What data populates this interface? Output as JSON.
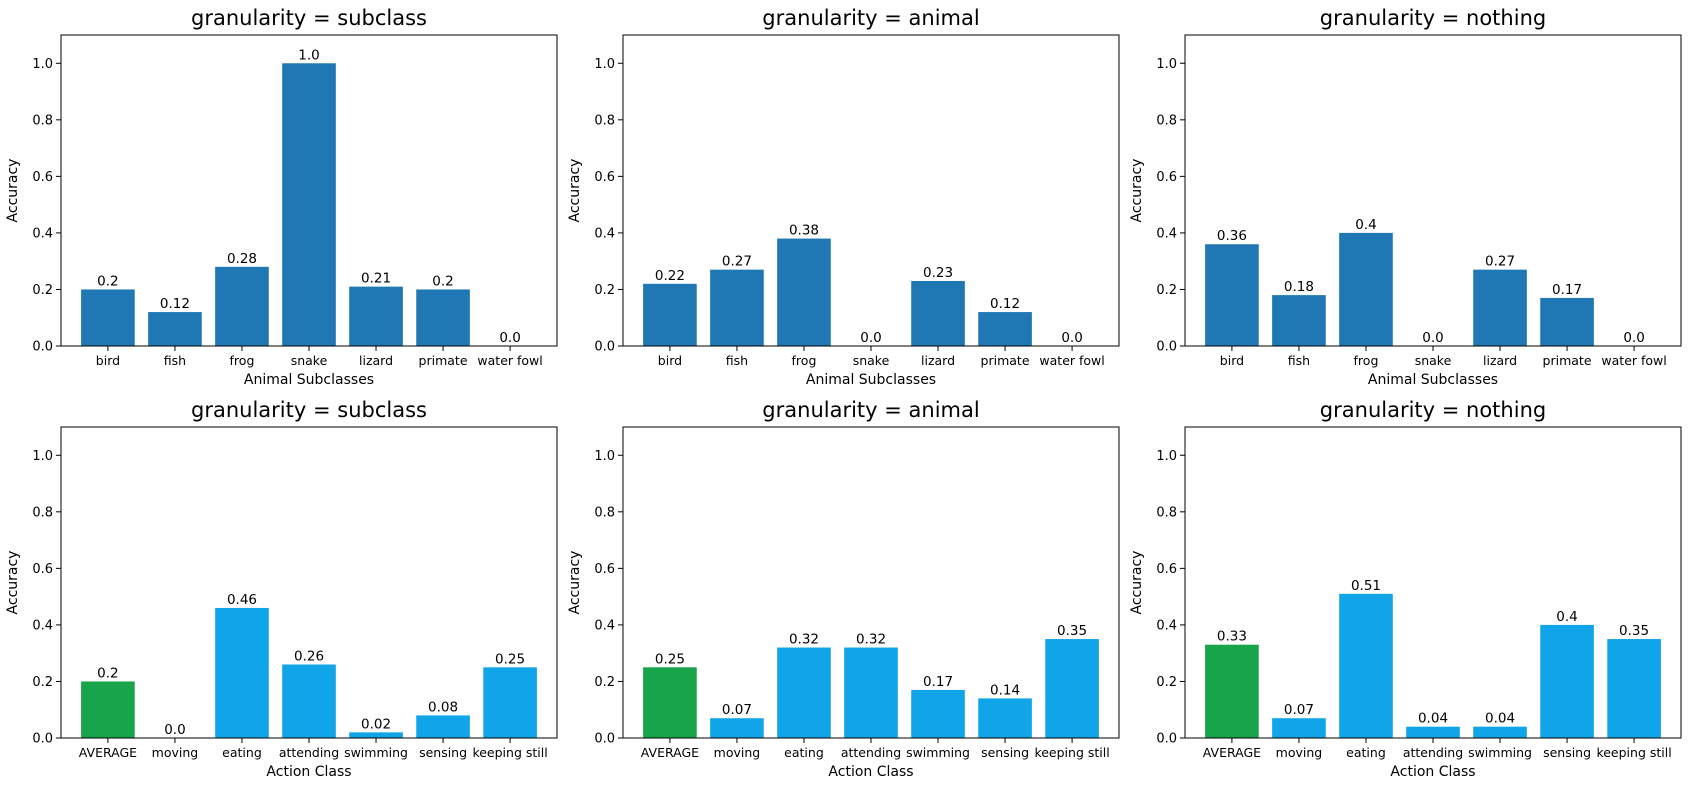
{
  "colors": {
    "animal_bar": "#1f77b4",
    "action_bar": "#10a5e8",
    "average_bar": "#18a44b"
  },
  "chart_data": [
    {
      "type": "bar",
      "title": "granularity = subclass",
      "xlabel": "Animal Subclasses",
      "ylabel": "Accuracy",
      "ylim": [
        0,
        1.1
      ],
      "yticks": [
        "0.0",
        "0.2",
        "0.4",
        "0.6",
        "0.8",
        "1.0"
      ],
      "categories": [
        "bird",
        "fish",
        "frog",
        "snake",
        "lizard",
        "primate",
        "water fowl"
      ],
      "values": [
        0.2,
        0.12,
        0.28,
        1.0,
        0.21,
        0.2,
        0.0
      ],
      "labels": [
        "0.2",
        "0.12",
        "0.28",
        "1.0",
        "0.21",
        "0.2",
        "0.0"
      ]
    },
    {
      "type": "bar",
      "title": "granularity = animal",
      "xlabel": "Animal Subclasses",
      "ylabel": "Accuracy",
      "ylim": [
        0,
        1.1
      ],
      "yticks": [
        "0.0",
        "0.2",
        "0.4",
        "0.6",
        "0.8",
        "1.0"
      ],
      "categories": [
        "bird",
        "fish",
        "frog",
        "snake",
        "lizard",
        "primate",
        "water fowl"
      ],
      "values": [
        0.22,
        0.27,
        0.38,
        0.0,
        0.23,
        0.12,
        0.0
      ],
      "labels": [
        "0.22",
        "0.27",
        "0.38",
        "0.0",
        "0.23",
        "0.12",
        "0.0"
      ]
    },
    {
      "type": "bar",
      "title": "granularity = nothing",
      "xlabel": "Animal Subclasses",
      "ylabel": "Accuracy",
      "ylim": [
        0,
        1.1
      ],
      "yticks": [
        "0.0",
        "0.2",
        "0.4",
        "0.6",
        "0.8",
        "1.0"
      ],
      "categories": [
        "bird",
        "fish",
        "frog",
        "snake",
        "lizard",
        "primate",
        "water fowl"
      ],
      "values": [
        0.36,
        0.18,
        0.4,
        0.0,
        0.27,
        0.17,
        0.0
      ],
      "labels": [
        "0.36",
        "0.18",
        "0.4",
        "0.0",
        "0.27",
        "0.17",
        "0.0"
      ]
    },
    {
      "type": "bar",
      "title": "granularity = subclass",
      "xlabel": "Action Class",
      "ylabel": "Accuracy",
      "ylim": [
        0,
        1.1
      ],
      "yticks": [
        "0.0",
        "0.2",
        "0.4",
        "0.6",
        "0.8",
        "1.0"
      ],
      "categories": [
        "AVERAGE",
        "moving",
        "eating",
        "attending",
        "swimming",
        "sensing",
        "keeping still"
      ],
      "values": [
        0.2,
        0.0,
        0.46,
        0.26,
        0.02,
        0.08,
        0.25
      ],
      "labels": [
        "0.2",
        "0.0",
        "0.46",
        "0.26",
        "0.02",
        "0.08",
        "0.25"
      ]
    },
    {
      "type": "bar",
      "title": "granularity = animal",
      "xlabel": "Action Class",
      "ylabel": "Accuracy",
      "ylim": [
        0,
        1.1
      ],
      "yticks": [
        "0.0",
        "0.2",
        "0.4",
        "0.6",
        "0.8",
        "1.0"
      ],
      "categories": [
        "AVERAGE",
        "moving",
        "eating",
        "attending",
        "swimming",
        "sensing",
        "keeping still"
      ],
      "values": [
        0.25,
        0.07,
        0.32,
        0.32,
        0.17,
        0.14,
        0.35
      ],
      "labels": [
        "0.25",
        "0.07",
        "0.32",
        "0.32",
        "0.17",
        "0.14",
        "0.35"
      ]
    },
    {
      "type": "bar",
      "title": "granularity = nothing",
      "xlabel": "Action Class",
      "ylabel": "Accuracy",
      "ylim": [
        0,
        1.1
      ],
      "yticks": [
        "0.0",
        "0.2",
        "0.4",
        "0.6",
        "0.8",
        "1.0"
      ],
      "categories": [
        "AVERAGE",
        "moving",
        "eating",
        "attending",
        "swimming",
        "sensing",
        "keeping still"
      ],
      "values": [
        0.33,
        0.07,
        0.51,
        0.04,
        0.04,
        0.4,
        0.35
      ],
      "labels": [
        "0.33",
        "0.07",
        "0.51",
        "0.04",
        "0.04",
        "0.4",
        "0.35"
      ]
    }
  ]
}
